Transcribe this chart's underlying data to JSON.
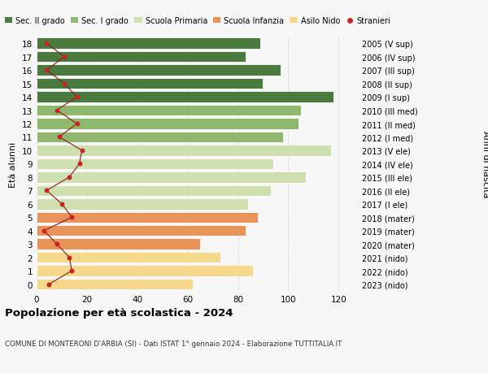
{
  "ages": [
    0,
    1,
    2,
    3,
    4,
    5,
    6,
    7,
    8,
    9,
    10,
    11,
    12,
    13,
    14,
    15,
    16,
    17,
    18
  ],
  "labels_right": [
    "2023 (nido)",
    "2022 (nido)",
    "2021 (nido)",
    "2020 (mater)",
    "2019 (mater)",
    "2018 (mater)",
    "2017 (I ele)",
    "2016 (II ele)",
    "2015 (III ele)",
    "2014 (IV ele)",
    "2013 (V ele)",
    "2012 (I med)",
    "2011 (II med)",
    "2010 (III med)",
    "2009 (I sup)",
    "2008 (II sup)",
    "2007 (III sup)",
    "2006 (IV sup)",
    "2005 (V sup)"
  ],
  "bar_values": [
    62,
    86,
    73,
    65,
    83,
    88,
    84,
    93,
    107,
    94,
    117,
    98,
    104,
    105,
    118,
    90,
    97,
    83,
    89
  ],
  "bar_colors": [
    "#f5d78e",
    "#f5d78e",
    "#f5d78e",
    "#e8935a",
    "#e8935a",
    "#e8935a",
    "#cde0b0",
    "#cde0b0",
    "#cde0b0",
    "#cde0b0",
    "#cde0b0",
    "#8fb86e",
    "#8fb86e",
    "#8fb86e",
    "#4a7a3d",
    "#4a7a3d",
    "#4a7a3d",
    "#4a7a3d",
    "#4a7a3d"
  ],
  "stranieri_values": [
    5,
    14,
    13,
    8,
    3,
    14,
    10,
    4,
    13,
    17,
    18,
    9,
    16,
    8,
    16,
    11,
    4,
    11,
    4
  ],
  "title": "Popolazione per età scolastica - 2024",
  "subtitle": "COMUNE DI MONTERONI D'ARBIA (SI) - Dati ISTAT 1° gennaio 2024 - Elaborazione TUTTITALIA.IT",
  "left_ylabel": "Età alunni",
  "right_ylabel": "Anni di nascita",
  "xlim": [
    0,
    128
  ],
  "xticks": [
    0,
    20,
    40,
    60,
    80,
    100,
    120
  ],
  "legend_labels": [
    "Sec. II grado",
    "Sec. I grado",
    "Scuola Primaria",
    "Scuola Infanzia",
    "Asilo Nido",
    "Stranieri"
  ],
  "legend_colors": [
    "#4a7a3d",
    "#8fb86e",
    "#cde0b0",
    "#e8935a",
    "#f5d78e",
    "#8b1a1a"
  ],
  "background_color": "#f7f7f7"
}
